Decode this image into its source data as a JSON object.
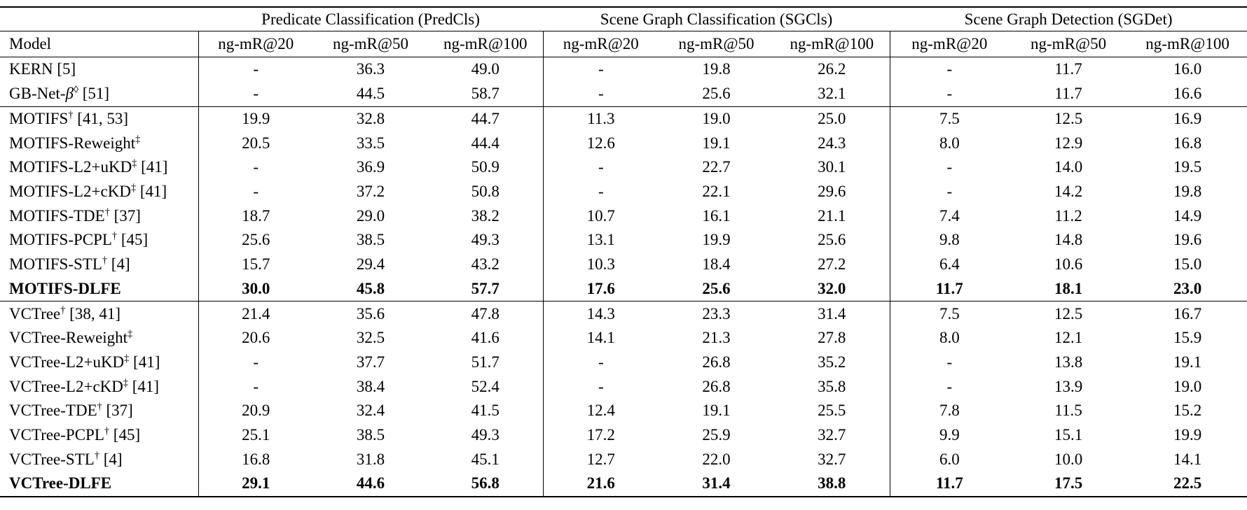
{
  "table": {
    "model_header": "Model",
    "metric_headers": [
      "ng-mR@20",
      "ng-mR@50",
      "ng-mR@100"
    ],
    "col_groups": [
      {
        "label": "Predicate Classification (PredCls)"
      },
      {
        "label": "Scene Graph Classification (SGCls)"
      },
      {
        "label": "Scene Graph Detection (SGDet)"
      }
    ],
    "groups": [
      {
        "rows": [
          {
            "bold": false,
            "model": [
              {
                "text": "KERN [5]"
              }
            ],
            "values": [
              "-",
              "36.3",
              "49.0",
              "-",
              "19.8",
              "26.2",
              "-",
              "11.7",
              "16.0"
            ]
          },
          {
            "bold": false,
            "model": [
              {
                "text": "GB-Net-"
              },
              {
                "text": "β",
                "italic": true
              },
              {
                "text": "◊",
                "sup": true
              },
              {
                "text": " [51]"
              }
            ],
            "values": [
              "-",
              "44.5",
              "58.7",
              "-",
              "25.6",
              "32.1",
              "-",
              "11.7",
              "16.6"
            ]
          }
        ]
      },
      {
        "rows": [
          {
            "bold": false,
            "model": [
              {
                "text": "MOTIFS"
              },
              {
                "text": "†",
                "sup": true
              },
              {
                "text": " [41, 53]"
              }
            ],
            "values": [
              "19.9",
              "32.8",
              "44.7",
              "11.3",
              "19.0",
              "25.0",
              "7.5",
              "12.5",
              "16.9"
            ]
          },
          {
            "bold": false,
            "model": [
              {
                "text": "MOTIFS-Reweight"
              },
              {
                "text": "‡",
                "sup": true
              }
            ],
            "values": [
              "20.5",
              "33.5",
              "44.4",
              "12.6",
              "19.1",
              "24.3",
              "8.0",
              "12.9",
              "16.8"
            ]
          },
          {
            "bold": false,
            "model": [
              {
                "text": "MOTIFS-L2+uKD"
              },
              {
                "text": "‡",
                "sup": true
              },
              {
                "text": " [41]"
              }
            ],
            "values": [
              "-",
              "36.9",
              "50.9",
              "-",
              "22.7",
              "30.1",
              "-",
              "14.0",
              "19.5"
            ]
          },
          {
            "bold": false,
            "model": [
              {
                "text": "MOTIFS-L2+cKD"
              },
              {
                "text": "‡",
                "sup": true
              },
              {
                "text": " [41]"
              }
            ],
            "values": [
              "-",
              "37.2",
              "50.8",
              "-",
              "22.1",
              "29.6",
              "-",
              "14.2",
              "19.8"
            ]
          },
          {
            "bold": false,
            "model": [
              {
                "text": "MOTIFS-TDE"
              },
              {
                "text": "†",
                "sup": true
              },
              {
                "text": " [37]"
              }
            ],
            "values": [
              "18.7",
              "29.0",
              "38.2",
              "10.7",
              "16.1",
              "21.1",
              "7.4",
              "11.2",
              "14.9"
            ]
          },
          {
            "bold": false,
            "model": [
              {
                "text": "MOTIFS-PCPL"
              },
              {
                "text": "†",
                "sup": true
              },
              {
                "text": " [45]"
              }
            ],
            "values": [
              "25.6",
              "38.5",
              "49.3",
              "13.1",
              "19.9",
              "25.6",
              "9.8",
              "14.8",
              "19.6"
            ]
          },
          {
            "bold": false,
            "model": [
              {
                "text": "MOTIFS-STL"
              },
              {
                "text": "†",
                "sup": true
              },
              {
                "text": " [4]"
              }
            ],
            "values": [
              "15.7",
              "29.4",
              "43.2",
              "10.3",
              "18.4",
              "27.2",
              "6.4",
              "10.6",
              "15.0"
            ]
          },
          {
            "bold": true,
            "model": [
              {
                "text": "MOTIFS-DLFE"
              }
            ],
            "values": [
              "30.0",
              "45.8",
              "57.7",
              "17.6",
              "25.6",
              "32.0",
              "11.7",
              "18.1",
              "23.0"
            ]
          }
        ]
      },
      {
        "rows": [
          {
            "bold": false,
            "model": [
              {
                "text": "VCTree"
              },
              {
                "text": "†",
                "sup": true
              },
              {
                "text": " [38, 41]"
              }
            ],
            "values": [
              "21.4",
              "35.6",
              "47.8",
              "14.3",
              "23.3",
              "31.4",
              "7.5",
              "12.5",
              "16.7"
            ]
          },
          {
            "bold": false,
            "model": [
              {
                "text": "VCTree-Reweight"
              },
              {
                "text": "‡",
                "sup": true
              }
            ],
            "values": [
              "20.6",
              "32.5",
              "41.6",
              "14.1",
              "21.3",
              "27.8",
              "8.0",
              "12.1",
              "15.9"
            ]
          },
          {
            "bold": false,
            "model": [
              {
                "text": "VCTree-L2+uKD"
              },
              {
                "text": "‡",
                "sup": true
              },
              {
                "text": " [41]"
              }
            ],
            "values": [
              "-",
              "37.7",
              "51.7",
              "-",
              "26.8",
              "35.2",
              "-",
              "13.8",
              "19.1"
            ]
          },
          {
            "bold": false,
            "model": [
              {
                "text": "VCTree-L2+cKD"
              },
              {
                "text": "‡",
                "sup": true
              },
              {
                "text": " [41]"
              }
            ],
            "values": [
              "-",
              "38.4",
              "52.4",
              "-",
              "26.8",
              "35.8",
              "-",
              "13.9",
              "19.0"
            ]
          },
          {
            "bold": false,
            "model": [
              {
                "text": "VCTree-TDE"
              },
              {
                "text": "†",
                "sup": true
              },
              {
                "text": " [37]"
              }
            ],
            "values": [
              "20.9",
              "32.4",
              "41.5",
              "12.4",
              "19.1",
              "25.5",
              "7.8",
              "11.5",
              "15.2"
            ]
          },
          {
            "bold": false,
            "model": [
              {
                "text": "VCTree-PCPL"
              },
              {
                "text": "†",
                "sup": true
              },
              {
                "text": " [45]"
              }
            ],
            "values": [
              "25.1",
              "38.5",
              "49.3",
              "17.2",
              "25.9",
              "32.7",
              "9.9",
              "15.1",
              "19.9"
            ]
          },
          {
            "bold": false,
            "model": [
              {
                "text": "VCTree-STL"
              },
              {
                "text": "†",
                "sup": true
              },
              {
                "text": " [4]"
              }
            ],
            "values": [
              "16.8",
              "31.8",
              "45.1",
              "12.7",
              "22.0",
              "32.7",
              "6.0",
              "10.0",
              "14.1"
            ]
          },
          {
            "bold": true,
            "model": [
              {
                "text": "VCTree-DLFE"
              }
            ],
            "values": [
              "29.1",
              "44.6",
              "56.8",
              "21.6",
              "31.4",
              "38.8",
              "11.7",
              "17.5",
              "22.5"
            ]
          }
        ]
      }
    ]
  }
}
